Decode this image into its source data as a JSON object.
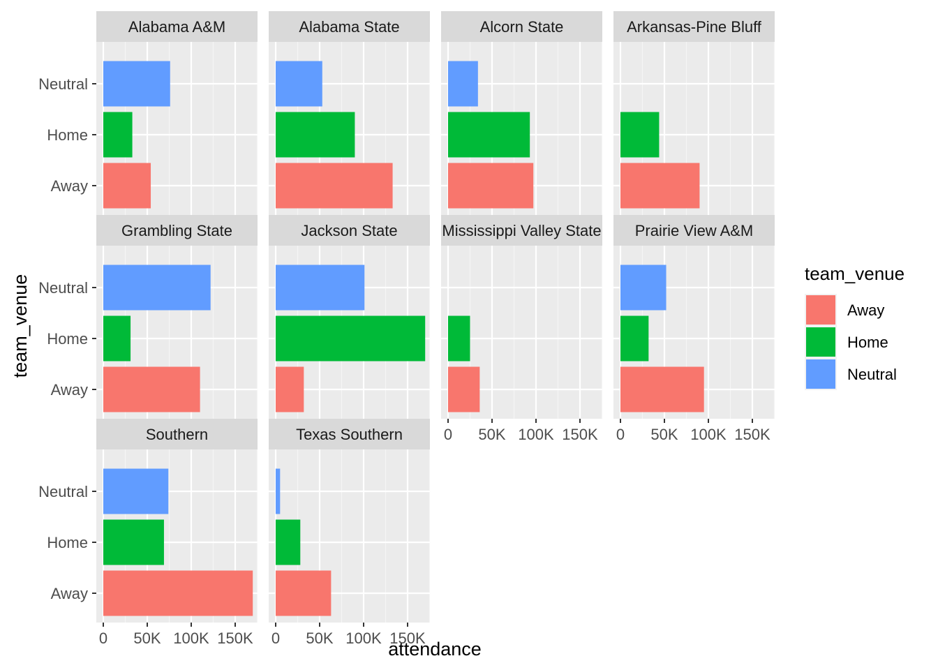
{
  "chart_data": {
    "type": "bar",
    "orientation": "horizontal",
    "facet_by": "team",
    "xlabel": "attendance",
    "ylabel": "team_venue",
    "xlim": [
      0,
      175000
    ],
    "x_ticks": [
      0,
      50000,
      100000,
      150000
    ],
    "x_tick_labels": [
      "0",
      "50K",
      "100K",
      "150K"
    ],
    "categories": [
      "Away",
      "Home",
      "Neutral"
    ],
    "colors": {
      "Away": "#F8766D",
      "Home": "#00BA38",
      "Neutral": "#619CFF"
    },
    "legend": {
      "title": "team_venue",
      "position": "right",
      "entries": [
        "Away",
        "Home",
        "Neutral"
      ]
    },
    "panels": [
      {
        "team": "Alabama A&M",
        "values": {
          "Away": 54000,
          "Home": 33000,
          "Neutral": 76000
        }
      },
      {
        "team": "Alabama State",
        "values": {
          "Away": 133000,
          "Home": 90000,
          "Neutral": 53000
        }
      },
      {
        "team": "Alcorn State",
        "values": {
          "Away": 97000,
          "Home": 93000,
          "Neutral": 34000
        }
      },
      {
        "team": "Arkansas-Pine Bluff",
        "values": {
          "Away": 90000,
          "Home": 44000,
          "Neutral": 0
        }
      },
      {
        "team": "Grambling State",
        "values": {
          "Away": 110000,
          "Home": 31000,
          "Neutral": 122000
        }
      },
      {
        "team": "Jackson State",
        "values": {
          "Away": 32000,
          "Home": 170000,
          "Neutral": 101000
        }
      },
      {
        "team": "Mississippi Valley State",
        "values": {
          "Away": 36000,
          "Home": 25000,
          "Neutral": 0
        }
      },
      {
        "team": "Prairie View A&M",
        "values": {
          "Away": 95000,
          "Home": 32000,
          "Neutral": 52000
        }
      },
      {
        "team": "Southern",
        "values": {
          "Away": 170000,
          "Home": 69000,
          "Neutral": 74000
        }
      },
      {
        "team": "Texas Southern",
        "values": {
          "Away": 63000,
          "Home": 28000,
          "Neutral": 5000
        }
      }
    ]
  }
}
